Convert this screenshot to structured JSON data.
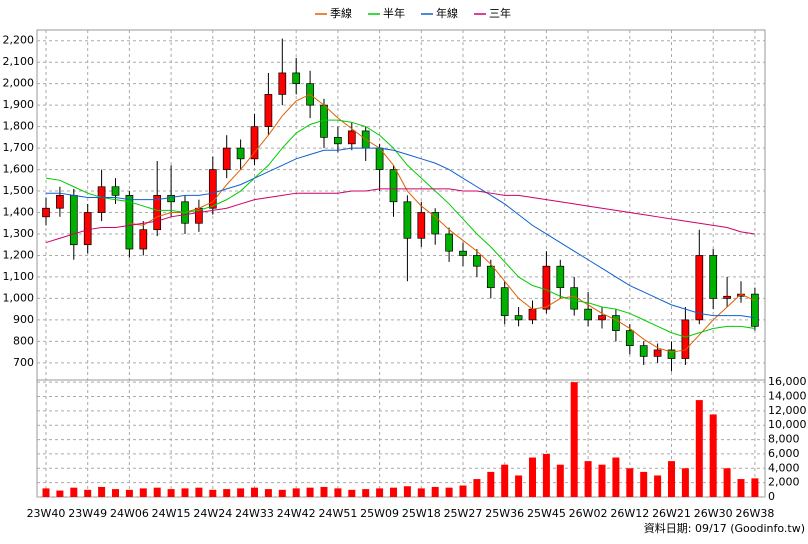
{
  "chart_data": {
    "type": "candlestick",
    "categories": [
      "23W40",
      null,
      null,
      "23W49",
      null,
      null,
      "24W06",
      null,
      null,
      "24W15",
      null,
      null,
      "24W24",
      null,
      null,
      "24W33",
      null,
      null,
      "24W42",
      null,
      null,
      "24W51",
      null,
      null,
      "25W09",
      null,
      null,
      "25W18",
      null,
      null,
      "25W27",
      null,
      null,
      "25W36",
      null,
      null,
      "25W45",
      null,
      null,
      "26W02",
      null,
      null,
      "26W12",
      null,
      null,
      "26W21",
      null,
      null,
      "26W30",
      null,
      null,
      "26W38"
    ],
    "open": [
      1380,
      1420,
      1480,
      1250,
      1400,
      1520,
      1480,
      1230,
      1320,
      1480,
      1450,
      1350,
      1420,
      1600,
      1700,
      1650,
      1800,
      1950,
      2050,
      2000,
      1900,
      1750,
      1720,
      1780,
      1700,
      1600,
      1450,
      1280,
      1400,
      1300,
      1220,
      1200,
      1150,
      1050,
      920,
      900,
      950,
      1150,
      1050,
      950,
      900,
      920,
      850,
      780,
      730,
      760,
      720,
      900,
      1200,
      1000,
      1010,
      1020
    ],
    "high": [
      1470,
      1520,
      1510,
      1440,
      1600,
      1560,
      1500,
      1360,
      1640,
      1620,
      1480,
      1460,
      1660,
      1760,
      1740,
      1860,
      2050,
      2210,
      2120,
      2060,
      1930,
      1800,
      1820,
      1800,
      1720,
      1620,
      1480,
      1450,
      1420,
      1330,
      1260,
      1230,
      1180,
      1080,
      960,
      990,
      1220,
      1180,
      1100,
      1030,
      960,
      950,
      880,
      800,
      790,
      800,
      960,
      1320,
      1230,
      1100,
      1080,
      1050
    ],
    "low": [
      1340,
      1380,
      1180,
      1210,
      1360,
      1440,
      1190,
      1200,
      1290,
      1380,
      1300,
      1310,
      1390,
      1560,
      1600,
      1620,
      1760,
      1900,
      1950,
      1840,
      1700,
      1680,
      1690,
      1640,
      1500,
      1380,
      1080,
      1240,
      1250,
      1170,
      1150,
      1100,
      1000,
      880,
      870,
      880,
      930,
      1000,
      920,
      870,
      860,
      800,
      740,
      690,
      700,
      660,
      690,
      880,
      950,
      960,
      980,
      850
    ],
    "close": [
      1420,
      1480,
      1250,
      1400,
      1520,
      1480,
      1230,
      1320,
      1480,
      1450,
      1350,
      1420,
      1600,
      1700,
      1650,
      1800,
      1950,
      2050,
      2000,
      1900,
      1750,
      1720,
      1780,
      1700,
      1600,
      1450,
      1280,
      1400,
      1300,
      1220,
      1200,
      1150,
      1050,
      920,
      900,
      950,
      1150,
      1050,
      950,
      900,
      920,
      850,
      780,
      730,
      760,
      720,
      900,
      1200,
      1000,
      1010,
      1020,
      870
    ],
    "up_color": "#ff0000",
    "down_color": "#00b000",
    "series": [
      {
        "name": "季線",
        "color": "#e06000",
        "values": [
          null,
          null,
          null,
          null,
          null,
          null,
          1350,
          1340,
          1380,
          1400,
          1400,
          1420,
          1450,
          1530,
          1600,
          1680,
          1760,
          1850,
          1920,
          1950,
          1900,
          1840,
          1790,
          1740,
          1700,
          1620,
          1500,
          1430,
          1380,
          1320,
          1270,
          1220,
          1160,
          1080,
          1000,
          950,
          960,
          1000,
          1010,
          970,
          930,
          900,
          860,
          810,
          770,
          750,
          760,
          830,
          900,
          960,
          1020,
          990
        ]
      },
      {
        "name": "半年",
        "color": "#00cc00",
        "values": [
          1560,
          1550,
          1520,
          1490,
          1470,
          1460,
          1450,
          1430,
          1410,
          1410,
          1400,
          1410,
          1430,
          1460,
          1500,
          1560,
          1620,
          1700,
          1770,
          1810,
          1830,
          1830,
          1820,
          1800,
          1760,
          1700,
          1620,
          1560,
          1500,
          1440,
          1370,
          1300,
          1240,
          1170,
          1100,
          1060,
          1040,
          1010,
          990,
          980,
          960,
          950,
          930,
          900,
          870,
          840,
          820,
          840,
          860,
          870,
          870,
          860
        ]
      },
      {
        "name": "年線",
        "color": "#1060d0",
        "values": [
          1490,
          1490,
          1480,
          1470,
          1470,
          1470,
          1460,
          1460,
          1460,
          1470,
          1480,
          1480,
          1490,
          1510,
          1530,
          1560,
          1590,
          1620,
          1650,
          1670,
          1690,
          1690,
          1700,
          1700,
          1700,
          1690,
          1670,
          1650,
          1630,
          1600,
          1560,
          1520,
          1480,
          1440,
          1390,
          1340,
          1300,
          1260,
          1220,
          1180,
          1140,
          1100,
          1060,
          1030,
          1000,
          970,
          950,
          930,
          920,
          920,
          920,
          910
        ]
      },
      {
        "name": "三年",
        "color": "#d0006a",
        "values": [
          1260,
          1280,
          1300,
          1320,
          1330,
          1330,
          1340,
          1350,
          1360,
          1380,
          1390,
          1400,
          1410,
          1420,
          1440,
          1460,
          1470,
          1480,
          1490,
          1490,
          1490,
          1490,
          1500,
          1500,
          1510,
          1510,
          1510,
          1510,
          1510,
          1510,
          1500,
          1500,
          1490,
          1480,
          1480,
          1470,
          1460,
          1450,
          1440,
          1430,
          1420,
          1410,
          1400,
          1390,
          1380,
          1370,
          1360,
          1350,
          1340,
          1330,
          1310,
          1300
        ]
      }
    ],
    "ylim": [
      620,
      2250
    ],
    "yticks": [
      700,
      800,
      900,
      {
        "value": 1000,
        "label": "1,000"
      },
      {
        "value": 1100,
        "label": "1,100"
      },
      {
        "value": 1200,
        "label": "1,200"
      },
      {
        "value": 1300,
        "label": "1,300"
      },
      {
        "value": 1400,
        "label": "1,400"
      },
      {
        "value": 1500,
        "label": "1,500"
      },
      {
        "value": 1600,
        "label": "1,600"
      },
      {
        "value": 1700,
        "label": "1,700"
      },
      {
        "value": 1800,
        "label": "1,800"
      },
      {
        "value": 1900,
        "label": "1,900"
      },
      {
        "value": 2000,
        "label": "2,000"
      },
      {
        "value": 2100,
        "label": "2,100"
      },
      {
        "value": 2200,
        "label": "2,200"
      }
    ],
    "volume": {
      "color": "#ff0000",
      "values": [
        1200,
        900,
        1300,
        1000,
        1400,
        1100,
        1000,
        1200,
        1300,
        1100,
        1200,
        1300,
        1000,
        1100,
        1200,
        1300,
        1100,
        1000,
        1200,
        1300,
        1400,
        1200,
        1000,
        1100,
        1200,
        1300,
        1500,
        1200,
        1400,
        1300,
        1600,
        2500,
        3500,
        4500,
        3000,
        5500,
        6000,
        4500,
        16000,
        5000,
        4500,
        5500,
        4000,
        3500,
        3000,
        5000,
        4000,
        13500,
        11500,
        4000,
        2500,
        2600
      ],
      "ylim": [
        0,
        16300
      ],
      "yticks": [
        0,
        {
          "value": 2000,
          "label": "2,000"
        },
        {
          "value": 4000,
          "label": "4,000"
        },
        {
          "value": 6000,
          "label": "6,000"
        },
        {
          "value": 8000,
          "label": "8,000"
        },
        {
          "value": 10000,
          "label": "10,000"
        },
        {
          "value": 12000,
          "label": "12,000"
        },
        {
          "value": 14000,
          "label": "14,000"
        },
        {
          "value": 16000,
          "label": "16,000"
        }
      ]
    },
    "grid": true,
    "legend": "top",
    "source": "資料日期: 09/17 (Goodinfo.tw)"
  }
}
